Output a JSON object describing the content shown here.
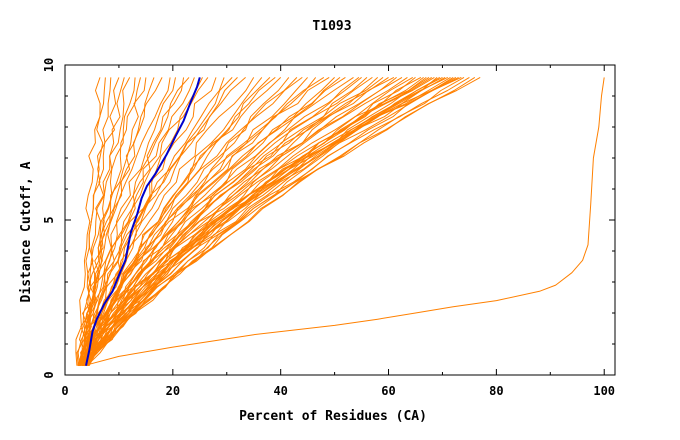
{
  "chart_data": {
    "type": "line",
    "title": "T1093",
    "xlabel": "Percent of Residues (CA)",
    "ylabel": "Distance Cutoff, A",
    "xlim": [
      0,
      102
    ],
    "ylim": [
      0,
      10
    ],
    "x_ticks": [
      "0",
      "20",
      "40",
      "60",
      "80",
      "100"
    ],
    "y_ticks": [
      "0",
      "5",
      "10"
    ],
    "grid": false,
    "colors": {
      "other_models": "#FF8000",
      "highlighted_model": "#0000CC"
    },
    "highlighted_series": {
      "name": "",
      "x": [
        3.9,
        4.5,
        5.1,
        5.9,
        7.3,
        8.8,
        10.2,
        11.2,
        12.2,
        13.4,
        14.2,
        15.2,
        16.8,
        18.8,
        20.5,
        22.0,
        23.3,
        24.5,
        25.0
      ],
      "y": [
        0.3,
        0.8,
        1.4,
        1.8,
        2.3,
        2.7,
        3.3,
        3.7,
        4.6,
        5.2,
        5.7,
        6.1,
        6.5,
        7.1,
        7.7,
        8.2,
        8.8,
        9.3,
        9.6
      ]
    },
    "outlier_series": {
      "name": "",
      "x": [
        3.5,
        10.0,
        20.0,
        35.0,
        50.0,
        58.0,
        65.0,
        72.0,
        80.0,
        88.0,
        91.0,
        94.0,
        96.0,
        97.0,
        97.5,
        98.0,
        99.0,
        99.5,
        100.0
      ],
      "y": [
        0.3,
        0.6,
        0.9,
        1.3,
        1.6,
        1.8,
        2.0,
        2.2,
        2.4,
        2.7,
        2.9,
        3.3,
        3.7,
        4.2,
        5.5,
        7.0,
        8.0,
        9.0,
        9.6
      ]
    },
    "series_count": 72,
    "series_start_x_range": [
      2.2,
      4.5
    ],
    "series_start_y": 0.3,
    "series_end_y": 9.6,
    "series_end_x": [
      6.5,
      7.5,
      8.5,
      10.0,
      11.0,
      12.0,
      13.0,
      14.0,
      15.0,
      16.5,
      18.0,
      19.5,
      20.5,
      22.0,
      23.0,
      24.0,
      25.5,
      26.5,
      28.0,
      29.5,
      31.0,
      32.0,
      33.5,
      35.0,
      36.5,
      38.0,
      39.0,
      40.0,
      41.5,
      43.0,
      44.0,
      45.0,
      46.5,
      48.0,
      49.0,
      50.0,
      51.0,
      52.0,
      53.5,
      54.5,
      55.0,
      56.0,
      57.0,
      58.0,
      59.0,
      60.0,
      61.0,
      61.5,
      62.5,
      63.5,
      64.5,
      65.0,
      66.0,
      66.5,
      67.0,
      67.5,
      68.0,
      68.5,
      69.0,
      69.5,
      70.0,
      70.5,
      71.0,
      71.5,
      72.0,
      72.5,
      73.0,
      73.5,
      74.0,
      75.0,
      76.0,
      77.0
    ]
  }
}
